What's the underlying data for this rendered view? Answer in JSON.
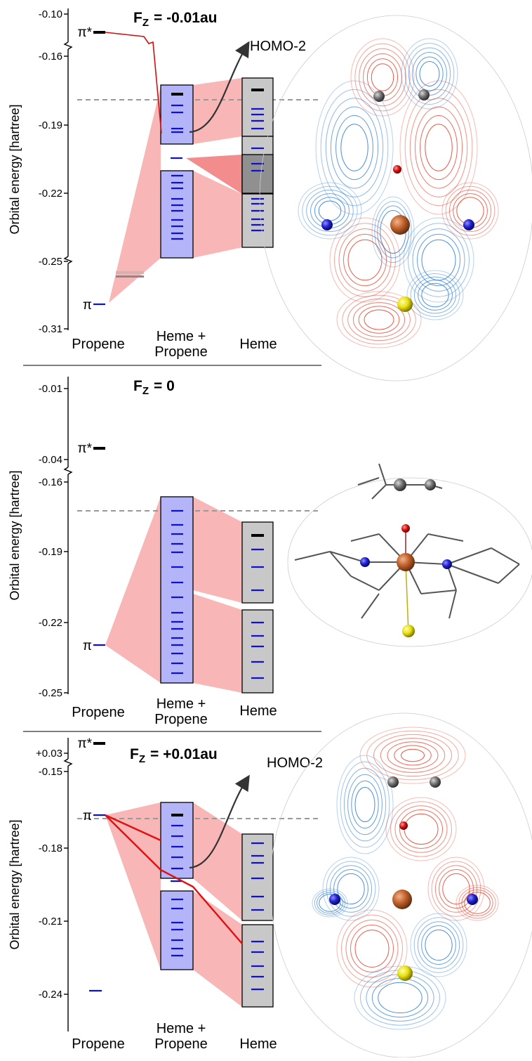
{
  "panels": [
    {
      "title": {
        "symbol": "F",
        "subscript": "Z",
        "value": "= -0.01au"
      },
      "y_axis_label": "Orbital energy [hartree]",
      "y_tick_labels": [
        "-0.10",
        "-0.16",
        "-0.19",
        "-0.22",
        "-0.25",
        "-0.31"
      ],
      "level_labels": [
        "π*",
        "π"
      ],
      "annotation": "HOMO-2",
      "categories": [
        [
          "Propene"
        ],
        [
          "Heme +",
          "Propene"
        ],
        [
          "Heme"
        ]
      ]
    },
    {
      "title": {
        "symbol": "F",
        "subscript": "Z",
        "value": "= 0"
      },
      "y_axis_label": "Orbital energy [hartree]",
      "y_tick_labels": [
        "-0.01",
        "-0.04",
        "-0.16",
        "-0.19",
        "-0.22",
        "-0.25"
      ],
      "level_labels": [
        "π*",
        "π"
      ],
      "categories": [
        [
          "Propene"
        ],
        [
          "Heme +",
          "Propene"
        ],
        [
          "Heme"
        ]
      ]
    },
    {
      "title": {
        "symbol": "F",
        "subscript": "Z",
        "value": "= +0.01au"
      },
      "y_axis_label": "Orbital energy [hartree]",
      "y_tick_labels": [
        "+0.03",
        "-0.15",
        "-0.18",
        "-0.21",
        "-0.24"
      ],
      "level_labels": [
        "π*",
        "π"
      ],
      "annotation": "HOMO-2",
      "categories": [
        [
          "Propene"
        ],
        [
          "Heme +",
          "Propene"
        ],
        [
          "Heme"
        ]
      ]
    }
  ]
}
